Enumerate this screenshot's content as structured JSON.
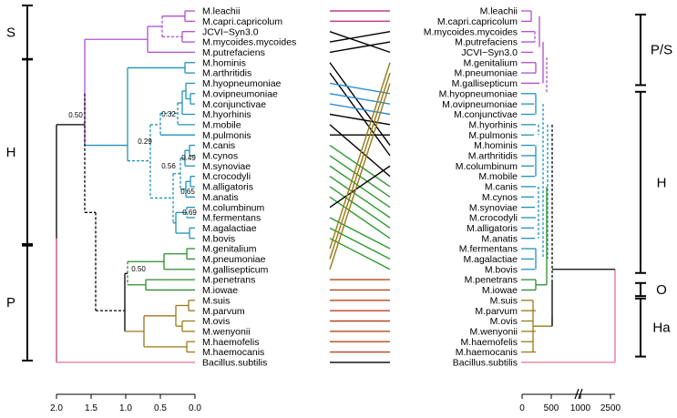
{
  "left_tree": {
    "taxa": [
      "M.leachii",
      "M.capri.capricolum",
      "JCVI−Syn3.0",
      "M.mycoides.mycoides",
      "M.putrefaciens",
      "M.hominis",
      "M.arthritidis",
      "M.hyopneumoniae",
      "M.ovipneumoniae",
      "M.conjunctivae",
      "M.hyorhinis",
      "M.mobile",
      "M.pulmonis",
      "M.canis",
      "M.cynos",
      "M.synoviae",
      "M.crocodyli",
      "M.alligatoris",
      "M.anatis",
      "M.columbinum",
      "M.fermentans",
      "M.agalactiae",
      "M.bovis",
      "M.genitalium",
      "M.pneumoniae",
      "M.gallisepticum",
      "M.penetrans",
      "M.iowae",
      "M.suis",
      "M.parvum",
      "M.ovis",
      "M.wenyonii",
      "M.haemofelis",
      "M.haemocanis",
      "Bacillus.subtilis"
    ],
    "node_labels": [
      "0.50",
      "0.32",
      "0.29",
      "0.49",
      "0.56",
      "0.65",
      "0.69",
      "0.50"
    ],
    "groups": [
      "S",
      "H",
      "P"
    ],
    "axis_ticks": [
      "2.0",
      "1.5",
      "1.0",
      "0.5",
      "0.0"
    ]
  },
  "right_tree": {
    "taxa": [
      "M.leachii",
      "M.capri.capricolum",
      "M.mycoides.mycoides",
      "M.putrefaciens",
      "JCVI−Syn3.0",
      "M.genitalium",
      "M.pneumoniae",
      "M.gallisepticum",
      "M.hyopneumoniae",
      "M.ovipneumoniae",
      "M.conjunctivae",
      "M.hyorhinis",
      "M.pulmonis",
      "M.hominis",
      "M.arthritidis",
      "M.columbinum",
      "M.mobile",
      "M.canis",
      "M.cynos",
      "M.synoviae",
      "M.crocodyli",
      "M.alligatoris",
      "M.anatis",
      "M.fermentans",
      "M.agalactiae",
      "M.bovis",
      "M.penetrans",
      "M.iowae",
      "M.suis",
      "M.parvum",
      "M.ovis",
      "M.wenyonii",
      "M.haemofelis",
      "M.haemocanis",
      "Bacillus.subtilis"
    ],
    "groups": [
      "P/S",
      "H",
      "O",
      "Ha"
    ],
    "axis_ticks": [
      "0",
      "500",
      "1000",
      "2500"
    ]
  },
  "colors": {
    "S": "#b04ed0",
    "H": "#1f93b5",
    "P": "#2e8b2e",
    "Ha": "#9a7a18",
    "out": "#e07090",
    "link_S": "#c0398f",
    "link_H": "#2a8fd6",
    "link_P": "#2e9a2e",
    "link_Ha": "#b8441c",
    "black": "#000000"
  }
}
